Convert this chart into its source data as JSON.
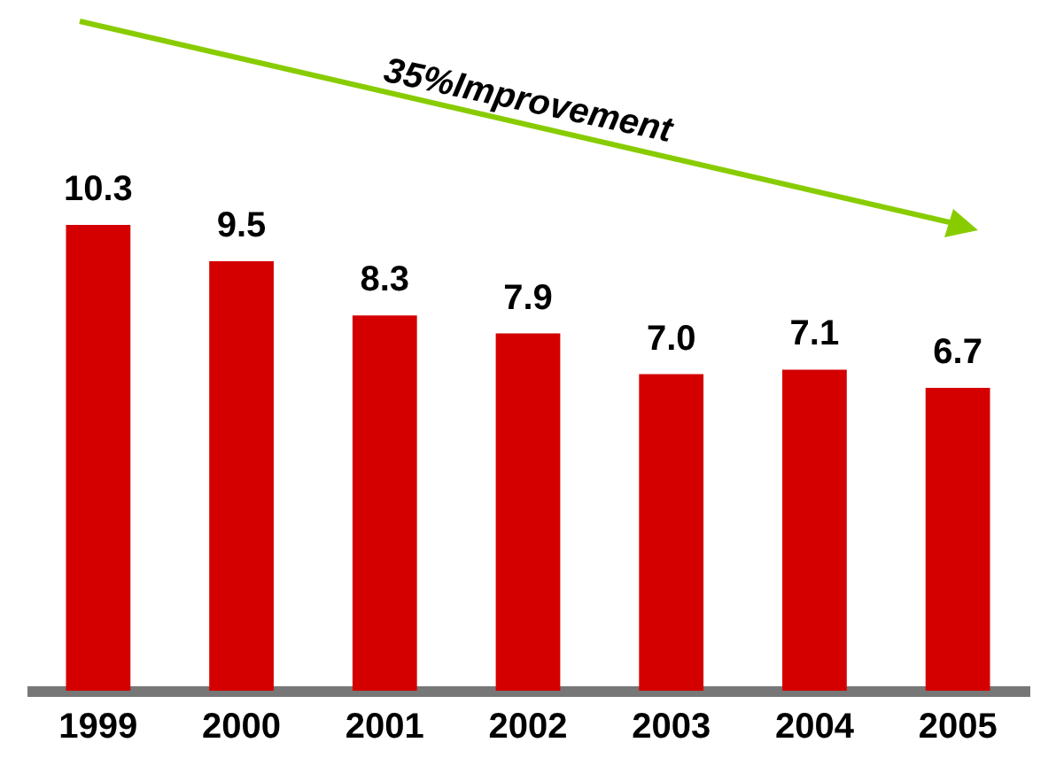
{
  "chart_data": {
    "type": "bar",
    "categories": [
      "1999",
      "2000",
      "2001",
      "2002",
      "2003",
      "2004",
      "2005"
    ],
    "values": [
      10.3,
      9.5,
      8.3,
      7.9,
      7.0,
      7.1,
      6.7
    ],
    "color": "#d40000",
    "value_labels": [
      "10.3",
      "9.5",
      "8.3",
      "7.9",
      "7.0",
      "7.1",
      "6.7"
    ],
    "annotations": [
      "35%Improvement"
    ]
  }
}
